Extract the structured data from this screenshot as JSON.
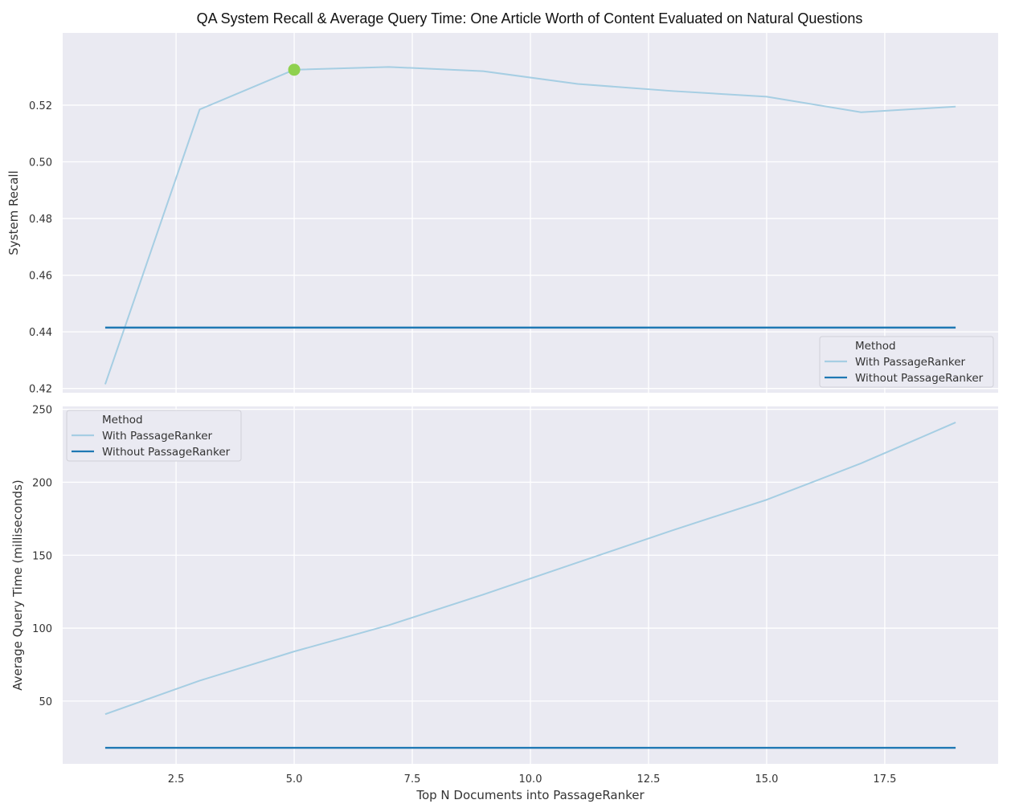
{
  "title": "QA System Recall & Average Query Time: One Article Worth of Content Evaluated on Natural Questions",
  "colors": {
    "with": "#a6cee3",
    "without": "#1f78b4",
    "highlight": "#8fd14f",
    "plot_bg": "#eaeaf2",
    "grid": "#ffffff"
  },
  "chart_data": [
    {
      "type": "line",
      "ylabel": "System Recall",
      "xlabel": "",
      "xlim": [
        0.1,
        19.9
      ],
      "ylim": [
        0.4185,
        0.5455
      ],
      "xticks": [
        2.5,
        5.0,
        7.5,
        10.0,
        12.5,
        15.0,
        17.5
      ],
      "yticks": [
        0.42,
        0.44,
        0.46,
        0.48,
        0.5,
        0.52
      ],
      "ytick_labels": [
        "0.42",
        "0.44",
        "0.46",
        "0.48",
        "0.50",
        "0.52"
      ],
      "series": [
        {
          "name": "With PassageRanker",
          "x": [
            1,
            3,
            5,
            7,
            9,
            11,
            13,
            15,
            17,
            19
          ],
          "values": [
            0.4215,
            0.5185,
            0.5325,
            0.5335,
            0.532,
            0.5275,
            0.525,
            0.523,
            0.5175,
            0.5195
          ]
        },
        {
          "name": "Without PassageRanker",
          "x": [
            1,
            19
          ],
          "values": [
            0.4415,
            0.4415
          ]
        }
      ],
      "highlight_point": {
        "x": 5,
        "y": 0.5325
      },
      "legend": {
        "title": "Method",
        "placement": "lower-right"
      }
    },
    {
      "type": "line",
      "ylabel": "Average Query Time (milliseconds)",
      "xlabel": "Top N Documents into PassageRanker",
      "xlim": [
        0.1,
        19.9
      ],
      "ylim": [
        7,
        252
      ],
      "xticks": [
        2.5,
        5.0,
        7.5,
        10.0,
        12.5,
        15.0,
        17.5
      ],
      "xtick_labels": [
        "2.5",
        "5.0",
        "7.5",
        "10.0",
        "12.5",
        "15.0",
        "17.5"
      ],
      "yticks": [
        50,
        100,
        150,
        200,
        250
      ],
      "ytick_labels": [
        "50",
        "100",
        "150",
        "200",
        "250"
      ],
      "series": [
        {
          "name": "With PassageRanker",
          "x": [
            1,
            3,
            5,
            7,
            9,
            11,
            13,
            15,
            17,
            19
          ],
          "values": [
            41,
            64,
            84,
            102,
            123,
            145,
            167,
            188,
            213,
            241
          ]
        },
        {
          "name": "Without PassageRanker",
          "x": [
            1,
            19
          ],
          "values": [
            18,
            18
          ]
        }
      ],
      "legend": {
        "title": "Method",
        "placement": "upper-left"
      }
    }
  ]
}
